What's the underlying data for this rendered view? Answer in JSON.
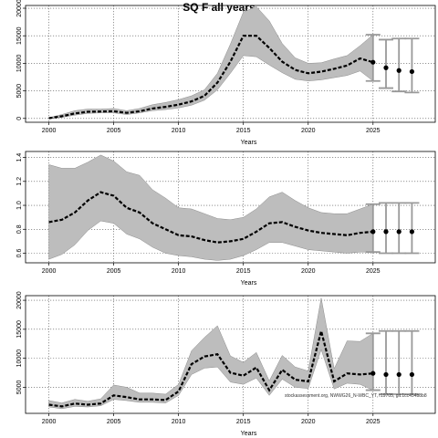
{
  "title": "SQ F all years",
  "watermark": "stockassessment.org, NWWG26_N-WBC_YT, r19705, git:1cc454b8b8",
  "chart_data": [
    {
      "type": "area",
      "ylabel": "",
      "xlabel": "Years",
      "xlim": [
        1998.2,
        2029.8
      ],
      "ylim": [
        -700,
        20500
      ],
      "xticks": [
        2000,
        2005,
        2010,
        2015,
        2020,
        2025
      ],
      "yticks": [
        0,
        5000,
        10000,
        15000,
        20000
      ],
      "ytick_labels": [
        "0",
        "5000",
        "10000",
        "15000",
        "20000"
      ],
      "grid": true,
      "x": [
        2000,
        2001,
        2002,
        2003,
        2004,
        2005,
        2006,
        2007,
        2008,
        2009,
        2010,
        2011,
        2012,
        2013,
        2014,
        2015,
        2016,
        2017,
        2018,
        2019,
        2020,
        2021,
        2022,
        2023,
        2024,
        2025
      ],
      "estimate": [
        50,
        400,
        900,
        1200,
        1250,
        1300,
        1000,
        1300,
        1800,
        2100,
        2500,
        3100,
        4100,
        6500,
        10300,
        15000,
        15000,
        12800,
        10300,
        8800,
        8200,
        8500,
        9000,
        9600,
        10900,
        10200
      ],
      "lower": [
        0,
        200,
        600,
        900,
        1000,
        1000,
        700,
        1000,
        1400,
        1600,
        1900,
        2400,
        3300,
        5200,
        8200,
        11400,
        11200,
        9700,
        8300,
        7100,
        6800,
        7000,
        7400,
        7800,
        8600,
        6800
      ],
      "upper": [
        150,
        700,
        1400,
        1700,
        1700,
        1800,
        1400,
        1800,
        2500,
        2900,
        3400,
        4100,
        5200,
        8200,
        13500,
        19300,
        20300,
        17700,
        13600,
        11000,
        10000,
        10100,
        10800,
        11400,
        13200,
        15200
      ],
      "projection": {
        "x": [
          2026,
          2027,
          2028
        ],
        "estimate": [
          9200,
          8700,
          8500
        ],
        "lower": [
          5500,
          4900,
          4700
        ],
        "upper": [
          14300,
          14500,
          14500
        ]
      }
    },
    {
      "type": "area",
      "ylabel": "",
      "xlabel": "Years",
      "xlim": [
        1998.2,
        2029.8
      ],
      "ylim": [
        0.52,
        1.45
      ],
      "xticks": [
        2000,
        2005,
        2010,
        2015,
        2020,
        2025
      ],
      "yticks": [
        0.6,
        0.8,
        1.0,
        1.2,
        1.4
      ],
      "ytick_labels": [
        "0.6",
        "0.8",
        "1.0",
        "1.2",
        "1.4"
      ],
      "grid": true,
      "x": [
        2000,
        2001,
        2002,
        2003,
        2004,
        2005,
        2006,
        2007,
        2008,
        2009,
        2010,
        2011,
        2012,
        2013,
        2014,
        2015,
        2016,
        2017,
        2018,
        2019,
        2020,
        2021,
        2022,
        2023,
        2024,
        2025
      ],
      "estimate": [
        0.86,
        0.88,
        0.94,
        1.04,
        1.11,
        1.08,
        0.98,
        0.94,
        0.85,
        0.8,
        0.75,
        0.74,
        0.71,
        0.69,
        0.7,
        0.72,
        0.78,
        0.85,
        0.86,
        0.82,
        0.79,
        0.77,
        0.76,
        0.75,
        0.77,
        0.78
      ],
      "lower": [
        0.55,
        0.59,
        0.67,
        0.79,
        0.87,
        0.85,
        0.76,
        0.72,
        0.65,
        0.6,
        0.58,
        0.57,
        0.55,
        0.54,
        0.55,
        0.58,
        0.63,
        0.69,
        0.69,
        0.66,
        0.63,
        0.62,
        0.61,
        0.6,
        0.61,
        0.61
      ],
      "upper": [
        1.34,
        1.31,
        1.31,
        1.36,
        1.42,
        1.37,
        1.28,
        1.25,
        1.13,
        1.06,
        0.98,
        0.97,
        0.93,
        0.89,
        0.88,
        0.9,
        0.97,
        1.07,
        1.11,
        1.04,
        0.98,
        0.94,
        0.93,
        0.93,
        0.97,
        1.01
      ],
      "projection": {
        "x": [
          2026,
          2027,
          2028
        ],
        "estimate": [
          0.78,
          0.78,
          0.78
        ],
        "lower": [
          0.6,
          0.6,
          0.6
        ],
        "upper": [
          1.02,
          1.02,
          1.02
        ]
      }
    },
    {
      "type": "area",
      "ylabel": "",
      "xlabel": "Years",
      "xlim": [
        1998.2,
        2029.8
      ],
      "ylim": [
        500,
        20800
      ],
      "xticks": [
        2000,
        2005,
        2010,
        2015,
        2020,
        2025
      ],
      "yticks": [
        5000,
        10000,
        15000,
        20000
      ],
      "ytick_labels": [
        "5000",
        "10000",
        "15000",
        "20000"
      ],
      "grid": true,
      "x": [
        2000,
        2001,
        2002,
        2003,
        2004,
        2005,
        2006,
        2007,
        2008,
        2009,
        2010,
        2011,
        2012,
        2013,
        2014,
        2015,
        2016,
        2017,
        2018,
        2019,
        2020,
        2021,
        2022,
        2023,
        2024,
        2025
      ],
      "estimate": [
        2000,
        1700,
        2200,
        2000,
        2200,
        3600,
        3300,
        2900,
        2900,
        2800,
        4300,
        9000,
        10300,
        10700,
        7500,
        7000,
        8400,
        4500,
        8000,
        6300,
        6000,
        14700,
        6000,
        7400,
        7200,
        7400
      ],
      "lower": [
        1600,
        1300,
        1700,
        1600,
        1800,
        2900,
        2700,
        2400,
        2400,
        2300,
        3600,
        7200,
        8300,
        8500,
        5900,
        5500,
        6600,
        3600,
        6400,
        5000,
        4800,
        11500,
        4700,
        5700,
        5500,
        4500
      ],
      "upper": [
        2700,
        2300,
        2900,
        2600,
        3000,
        5400,
        5000,
        4000,
        4000,
        3800,
        5500,
        11300,
        13600,
        15600,
        10400,
        9300,
        11000,
        6100,
        10500,
        8500,
        7800,
        20400,
        8200,
        13000,
        12900,
        14300
      ],
      "projection": {
        "x": [
          2026,
          2027,
          2028
        ],
        "estimate": [
          7200,
          7200,
          7200
        ],
        "lower": [
          3800,
          3800,
          3800
        ],
        "upper": [
          14700,
          14700,
          14700
        ]
      }
    }
  ]
}
